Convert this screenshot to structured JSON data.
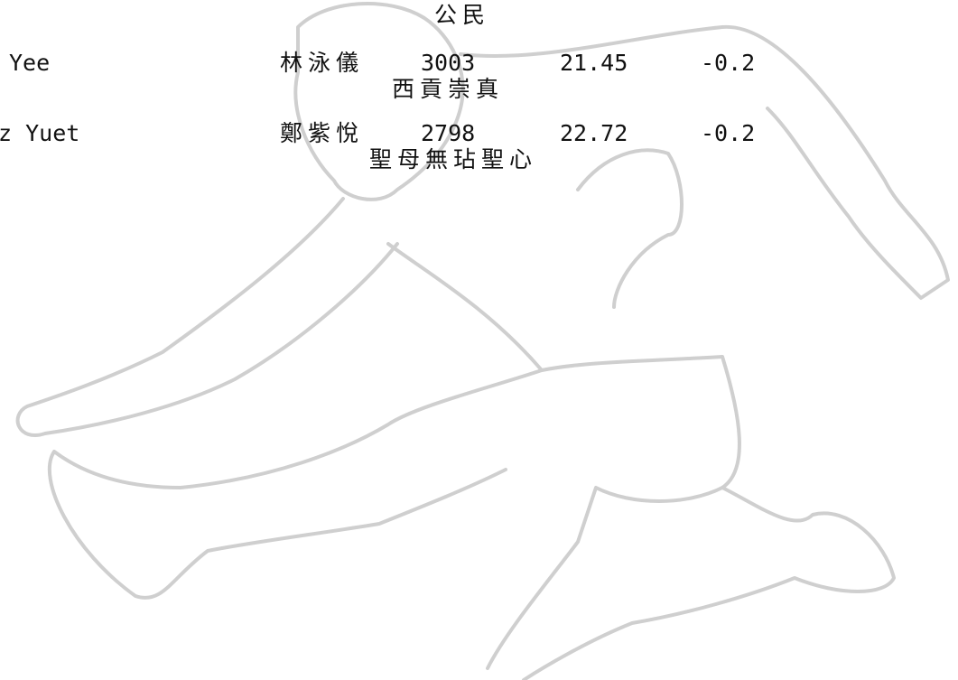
{
  "header": {
    "school": "公民"
  },
  "rows": [
    {
      "name": "Yee",
      "chinese_name": "林泳儀",
      "number": "3003",
      "time": "21.45",
      "wind": "-0.2",
      "school": "西貢崇真"
    },
    {
      "name": "z Yuet",
      "chinese_name": "鄭紫悅",
      "number": "2798",
      "time": "22.72",
      "wind": "-0.2",
      "school": "聖母無玷聖心"
    }
  ]
}
